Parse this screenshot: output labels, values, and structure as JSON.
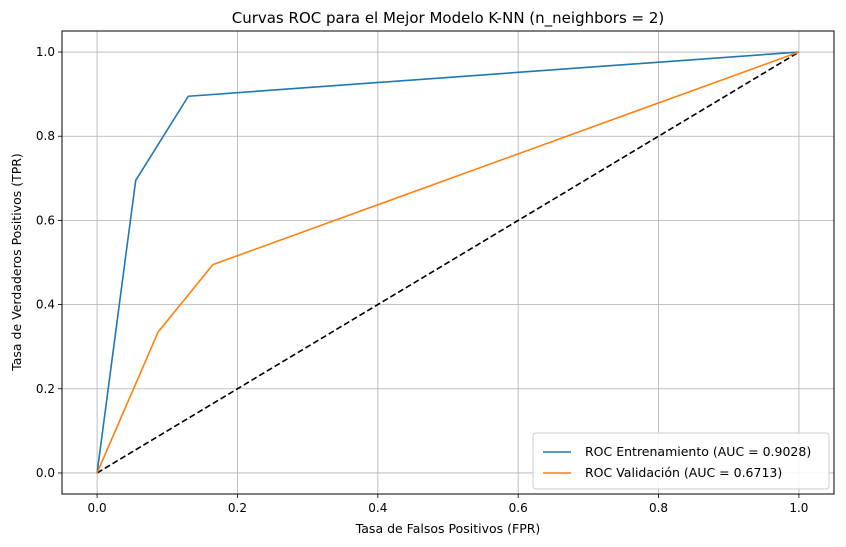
{
  "chart_data": {
    "type": "line",
    "title": "Curvas ROC para el Mejor Modelo K-NN (n_neighbors = 2)",
    "xlabel": "Tasa de Falsos Positivos (FPR)",
    "ylabel": "Tasa de Verdaderos Positivos (TPR)",
    "xlim": [
      -0.05,
      1.05
    ],
    "ylim": [
      -0.05,
      1.05
    ],
    "xticks": [
      0.0,
      0.2,
      0.4,
      0.6,
      0.8,
      1.0
    ],
    "yticks": [
      0.0,
      0.2,
      0.4,
      0.6,
      0.8,
      1.0
    ],
    "xtick_labels": [
      "0.0",
      "0.2",
      "0.4",
      "0.6",
      "0.8",
      "1.0"
    ],
    "ytick_labels": [
      "0.0",
      "0.2",
      "0.4",
      "0.6",
      "0.8",
      "1.0"
    ],
    "grid": true,
    "legend_position": "lower-right",
    "series": [
      {
        "name": "ROC Entrenamiento (AUC = 0.9028)",
        "color": "#1f77b4",
        "x": [
          0.0,
          0.055,
          0.13,
          1.0
        ],
        "y": [
          0.0,
          0.695,
          0.895,
          1.0
        ]
      },
      {
        "name": "ROC Validación (AUC = 0.6713)",
        "color": "#ff7f0e",
        "x": [
          0.0,
          0.087,
          0.165,
          1.0
        ],
        "y": [
          0.0,
          0.335,
          0.495,
          1.0
        ]
      }
    ],
    "reference_line": {
      "x": [
        0.0,
        1.0
      ],
      "y": [
        0.0,
        1.0
      ],
      "color": "#000000",
      "style": "dashed"
    }
  }
}
